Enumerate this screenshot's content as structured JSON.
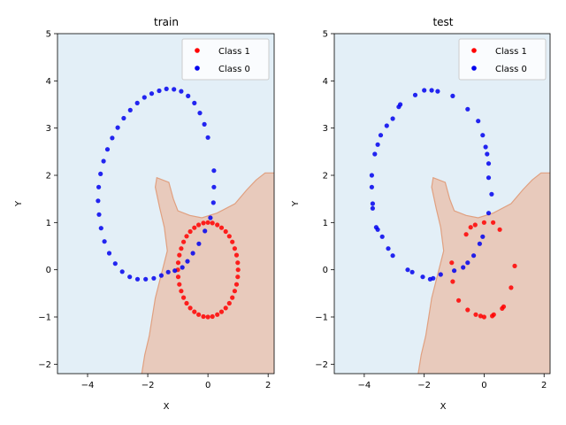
{
  "colors": {
    "class1": "#ff0000",
    "class0": "#0000ee",
    "region_class0": "#e3eff7",
    "region_class1": "#e8cabc",
    "boundary": "#e0a080"
  },
  "chart_data": [
    {
      "type": "scatter",
      "title": "train",
      "xlabel": "X",
      "ylabel": "Y",
      "xlim": [
        -5,
        2.2
      ],
      "ylim": [
        -2.2,
        5
      ],
      "xticks": [
        -4,
        -2,
        0,
        2
      ],
      "yticks": [
        -2,
        -1,
        0,
        1,
        2,
        3,
        4,
        5
      ],
      "legend_position": "top-right",
      "grid": false,
      "decision_boundary": [
        [
          -2.2,
          -2.2
        ],
        [
          -2.1,
          -1.8
        ],
        [
          -1.95,
          -1.4
        ],
        [
          -1.85,
          -1.0
        ],
        [
          -1.75,
          -0.6
        ],
        [
          -1.55,
          -0.1
        ],
        [
          -1.35,
          0.4
        ],
        [
          -1.45,
          0.9
        ],
        [
          -1.6,
          1.3
        ],
        [
          -1.75,
          1.75
        ],
        [
          -1.7,
          1.95
        ],
        [
          -1.3,
          1.85
        ],
        [
          -1.15,
          1.5
        ],
        [
          -1.0,
          1.25
        ],
        [
          -0.6,
          1.15
        ],
        [
          -0.2,
          1.1
        ],
        [
          0.3,
          1.2
        ],
        [
          0.9,
          1.4
        ],
        [
          1.3,
          1.7
        ],
        [
          1.6,
          1.9
        ],
        [
          1.9,
          2.05
        ],
        [
          2.2,
          2.05
        ]
      ],
      "series": [
        {
          "name": "Class 1",
          "points": [
            [
              1.0,
              0.0
            ],
            [
              0.99,
              0.15
            ],
            [
              0.95,
              0.31
            ],
            [
              0.89,
              0.45
            ],
            [
              0.81,
              0.59
            ],
            [
              0.71,
              0.71
            ],
            [
              0.59,
              0.81
            ],
            [
              0.45,
              0.89
            ],
            [
              0.31,
              0.95
            ],
            [
              0.15,
              0.99
            ],
            [
              0.0,
              1.0
            ],
            [
              -0.15,
              0.99
            ],
            [
              -0.31,
              0.95
            ],
            [
              -0.45,
              0.89
            ],
            [
              -0.59,
              0.81
            ],
            [
              -0.71,
              0.71
            ],
            [
              -0.81,
              0.59
            ],
            [
              -0.89,
              0.45
            ],
            [
              -0.95,
              0.31
            ],
            [
              -0.99,
              0.15
            ],
            [
              -1.0,
              0.0
            ],
            [
              -0.99,
              -0.15
            ],
            [
              -0.95,
              -0.31
            ],
            [
              -0.89,
              -0.45
            ],
            [
              -0.81,
              -0.59
            ],
            [
              -0.71,
              -0.71
            ],
            [
              -0.59,
              -0.81
            ],
            [
              -0.45,
              -0.89
            ],
            [
              -0.31,
              -0.95
            ],
            [
              -0.15,
              -0.99
            ],
            [
              0.0,
              -1.0
            ],
            [
              0.15,
              -0.99
            ],
            [
              0.31,
              -0.95
            ],
            [
              0.45,
              -0.89
            ],
            [
              0.59,
              -0.81
            ],
            [
              0.71,
              -0.71
            ],
            [
              0.81,
              -0.59
            ],
            [
              0.89,
              -0.45
            ],
            [
              0.95,
              -0.31
            ],
            [
              0.99,
              -0.15
            ]
          ]
        },
        {
          "name": "Class 0",
          "points": [
            [
              0.0,
              2.8
            ],
            [
              -0.12,
              3.08
            ],
            [
              -0.27,
              3.32
            ],
            [
              -0.45,
              3.53
            ],
            [
              -0.66,
              3.68
            ],
            [
              -0.89,
              3.78
            ],
            [
              -1.13,
              3.82
            ],
            [
              -1.38,
              3.83
            ],
            [
              -1.62,
              3.79
            ],
            [
              -1.87,
              3.73
            ],
            [
              -2.11,
              3.65
            ],
            [
              -2.35,
              3.53
            ],
            [
              -2.58,
              3.38
            ],
            [
              -2.8,
              3.21
            ],
            [
              -3.0,
              3.01
            ],
            [
              -3.18,
              2.79
            ],
            [
              -3.34,
              2.55
            ],
            [
              -3.47,
              2.3
            ],
            [
              -3.57,
              2.03
            ],
            [
              -3.63,
              1.75
            ],
            [
              -3.65,
              1.46
            ],
            [
              -3.62,
              1.17
            ],
            [
              -3.55,
              0.88
            ],
            [
              -3.44,
              0.6
            ],
            [
              -3.28,
              0.35
            ],
            [
              -3.08,
              0.13
            ],
            [
              -2.85,
              -0.04
            ],
            [
              -2.6,
              -0.15
            ],
            [
              -2.34,
              -0.2
            ],
            [
              -2.07,
              -0.2
            ],
            [
              -1.8,
              -0.18
            ],
            [
              -1.55,
              -0.12
            ],
            [
              -1.32,
              -0.05
            ],
            [
              -1.1,
              -0.02
            ],
            [
              -0.85,
              0.05
            ],
            [
              -0.68,
              0.18
            ],
            [
              -0.5,
              0.35
            ],
            [
              -0.3,
              0.55
            ],
            [
              -0.1,
              0.82
            ],
            [
              0.08,
              1.1
            ],
            [
              0.18,
              1.42
            ],
            [
              0.2,
              1.75
            ],
            [
              0.2,
              2.1
            ]
          ]
        }
      ]
    },
    {
      "type": "scatter",
      "title": "test",
      "xlabel": "X",
      "ylabel": "Y",
      "xlim": [
        -5,
        2.2
      ],
      "ylim": [
        -2.2,
        5
      ],
      "xticks": [
        -4,
        -2,
        0,
        2
      ],
      "yticks": [
        -2,
        -1,
        0,
        1,
        2,
        3,
        4,
        5
      ],
      "legend_position": "top-right",
      "grid": false,
      "decision_boundary": [
        [
          -2.2,
          -2.2
        ],
        [
          -2.1,
          -1.8
        ],
        [
          -1.95,
          -1.4
        ],
        [
          -1.85,
          -1.0
        ],
        [
          -1.75,
          -0.6
        ],
        [
          -1.55,
          -0.1
        ],
        [
          -1.35,
          0.4
        ],
        [
          -1.45,
          0.9
        ],
        [
          -1.6,
          1.3
        ],
        [
          -1.75,
          1.75
        ],
        [
          -1.7,
          1.95
        ],
        [
          -1.3,
          1.85
        ],
        [
          -1.15,
          1.5
        ],
        [
          -1.0,
          1.25
        ],
        [
          -0.6,
          1.15
        ],
        [
          -0.2,
          1.1
        ],
        [
          0.3,
          1.2
        ],
        [
          0.9,
          1.4
        ],
        [
          1.3,
          1.7
        ],
        [
          1.6,
          1.9
        ],
        [
          1.9,
          2.05
        ],
        [
          2.2,
          2.05
        ]
      ],
      "series": [
        {
          "name": "Class 1",
          "points": [
            [
              1.02,
              0.08
            ],
            [
              0.9,
              -0.38
            ],
            [
              0.65,
              -0.78
            ],
            [
              0.6,
              -0.82
            ],
            [
              0.32,
              -0.95
            ],
            [
              0.27,
              -0.98
            ],
            [
              0.0,
              -1.0
            ],
            [
              -0.12,
              -0.98
            ],
            [
              -0.28,
              -0.95
            ],
            [
              -0.55,
              -0.85
            ],
            [
              -0.85,
              -0.65
            ],
            [
              -1.05,
              -0.25
            ],
            [
              -1.08,
              0.15
            ],
            [
              -0.6,
              0.75
            ],
            [
              -0.45,
              0.9
            ],
            [
              -0.3,
              0.95
            ],
            [
              0.0,
              1.0
            ],
            [
              0.3,
              1.0
            ],
            [
              0.52,
              0.85
            ]
          ]
        },
        {
          "name": "Class 0",
          "points": [
            [
              0.15,
              1.95
            ],
            [
              0.15,
              2.25
            ],
            [
              0.1,
              2.45
            ],
            [
              0.05,
              2.6
            ],
            [
              -0.05,
              2.85
            ],
            [
              -0.2,
              3.15
            ],
            [
              -0.55,
              3.4
            ],
            [
              -1.05,
              3.68
            ],
            [
              -1.55,
              3.78
            ],
            [
              -1.75,
              3.8
            ],
            [
              -2.0,
              3.8
            ],
            [
              -2.3,
              3.7
            ],
            [
              -2.8,
              3.5
            ],
            [
              -2.85,
              3.45
            ],
            [
              -3.05,
              3.2
            ],
            [
              -3.25,
              3.05
            ],
            [
              -3.45,
              2.85
            ],
            [
              -3.55,
              2.65
            ],
            [
              -3.65,
              2.45
            ],
            [
              -3.75,
              2.0
            ],
            [
              -3.75,
              1.75
            ],
            [
              -3.72,
              1.4
            ],
            [
              -3.72,
              1.3
            ],
            [
              -3.6,
              0.9
            ],
            [
              -3.55,
              0.85
            ],
            [
              -3.4,
              0.7
            ],
            [
              -3.2,
              0.45
            ],
            [
              -3.05,
              0.3
            ],
            [
              -2.55,
              0.0
            ],
            [
              -2.4,
              -0.05
            ],
            [
              -2.05,
              -0.15
            ],
            [
              -1.8,
              -0.2
            ],
            [
              -1.7,
              -0.18
            ],
            [
              -1.45,
              -0.1
            ],
            [
              -1.0,
              -0.02
            ],
            [
              -0.7,
              0.05
            ],
            [
              -0.55,
              0.15
            ],
            [
              -0.35,
              0.3
            ],
            [
              -0.15,
              0.55
            ],
            [
              -0.05,
              0.7
            ],
            [
              0.15,
              1.2
            ],
            [
              0.25,
              1.6
            ]
          ]
        }
      ]
    }
  ]
}
